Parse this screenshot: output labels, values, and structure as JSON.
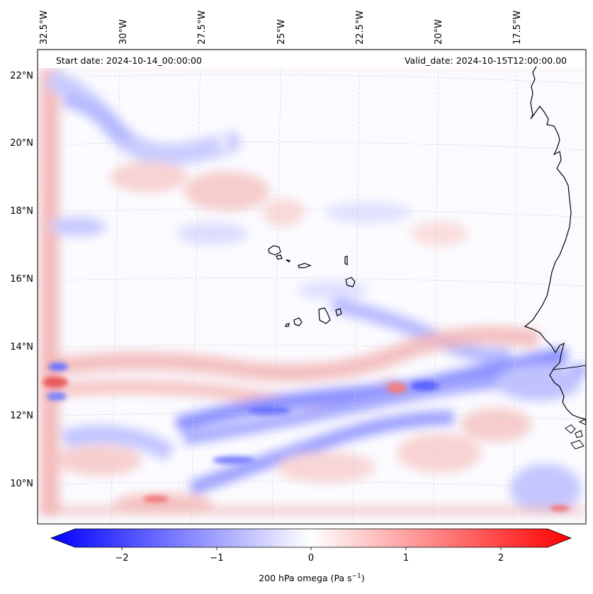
{
  "map": {
    "start_label": "Start date: 2024-10-14_00:00:00",
    "valid_label": "Valid_date: 2024-10-15T12:00:00.00",
    "lon_labels": [
      "32.5°W",
      "30°W",
      "27.5°W",
      "25°W",
      "22.5°W",
      "20°W",
      "17.5°W"
    ],
    "lat_labels": [
      "22°N",
      "20°N",
      "18°N",
      "16°N",
      "14°N",
      "12°N",
      "10°N"
    ],
    "colorbar": {
      "ticks": [
        "−2",
        "−1",
        "0",
        "1",
        "2"
      ],
      "label_main": "200 hPa omega (Pa s",
      "label_exp": "−1",
      "label_close": ")",
      "min": -2.6,
      "max": 2.6,
      "colors": {
        "low": "#0000ff",
        "mid": "#ffffff",
        "high": "#ff0000"
      }
    },
    "colors": {
      "coast": "#000000",
      "grid": "#cfcfcf",
      "frame": "#000000"
    }
  }
}
